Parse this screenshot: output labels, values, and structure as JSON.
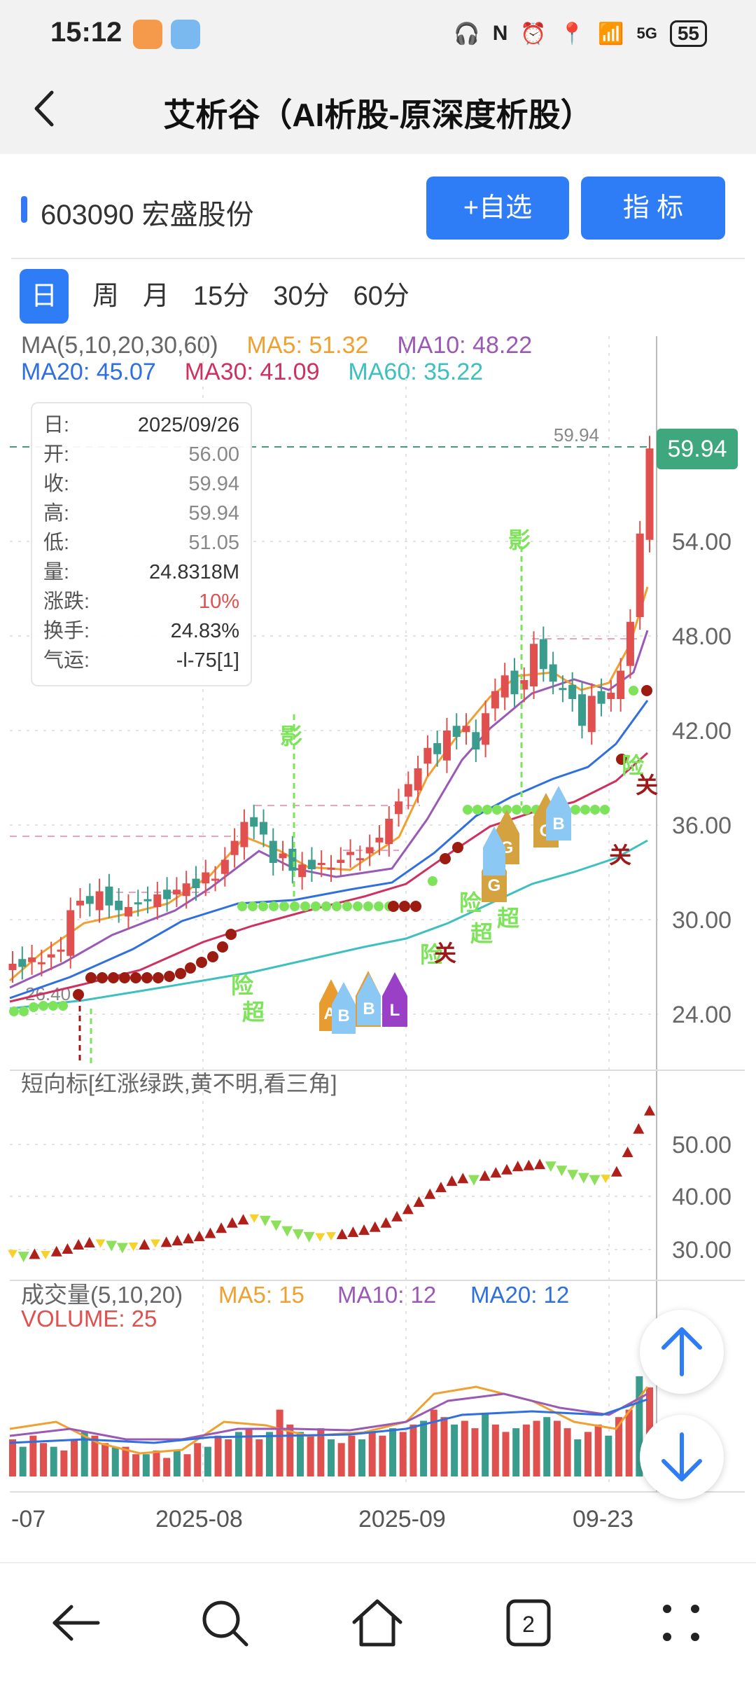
{
  "status": {
    "time": "15:12",
    "battery": "55",
    "signal": "5G"
  },
  "header": {
    "title": "艾析谷（AI析股-原深度析股）"
  },
  "stock": {
    "code_name": "603090 宏盛股份",
    "add_button": "+自选",
    "indicator_button": "指  标"
  },
  "periods": [
    "日",
    "周",
    "月",
    "15分",
    "30分",
    "60分"
  ],
  "ma_legend": {
    "label": "MA(5,10,20,30,60)",
    "ma5": "MA5: 51.32",
    "ma10": "MA10: 48.22",
    "ma20": "MA20: 45.07",
    "ma30": "MA30: 41.09",
    "ma60": "MA60: 35.22"
  },
  "info": {
    "rows": [
      {
        "k": "日:",
        "v": "2025/09/26"
      },
      {
        "k": "开:",
        "v": "56.00"
      },
      {
        "k": "收:",
        "v": "59.94"
      },
      {
        "k": "高:",
        "v": "59.94"
      },
      {
        "k": "低:",
        "v": "51.05"
      },
      {
        "k": "量:",
        "v": "24.8318M"
      },
      {
        "k": "涨跌:",
        "v": "10%"
      },
      {
        "k": "换手:",
        "v": "24.83%"
      },
      {
        "k": "气运:",
        "v": "-l-75[1]"
      }
    ]
  },
  "price_axis": [
    "54.00",
    "48.00",
    "42.00",
    "36.00",
    "30.00",
    "24.00"
  ],
  "last_price": "59.94",
  "high_label": "59.94",
  "low_label": "26.40",
  "signals": {
    "ying": "影",
    "xian": "险",
    "chao": "超",
    "guan": "关"
  },
  "short_indicator": {
    "label": "短向标[红涨绿跌,黄不明,看三角]",
    "axis": [
      "50.00",
      "40.00",
      "30.00"
    ]
  },
  "volume": {
    "label": "成交量(5,10,20)",
    "ma5": "MA5: 15",
    "ma10": "MA10: 12",
    "ma20": "MA20: 12",
    "volume": "VOLUME: 25"
  },
  "date_axis": [
    "-07",
    "2025-08",
    "2025-09",
    "09-23"
  ],
  "colors": {
    "up": "#e0504f",
    "down": "#3a9c8c",
    "accent": "#2f7df6",
    "ma5": "#f0a030",
    "ma10": "#9b59b6",
    "ma20": "#2f6fe0",
    "ma30": "#d03060",
    "ma60": "#3ec0c0"
  }
}
